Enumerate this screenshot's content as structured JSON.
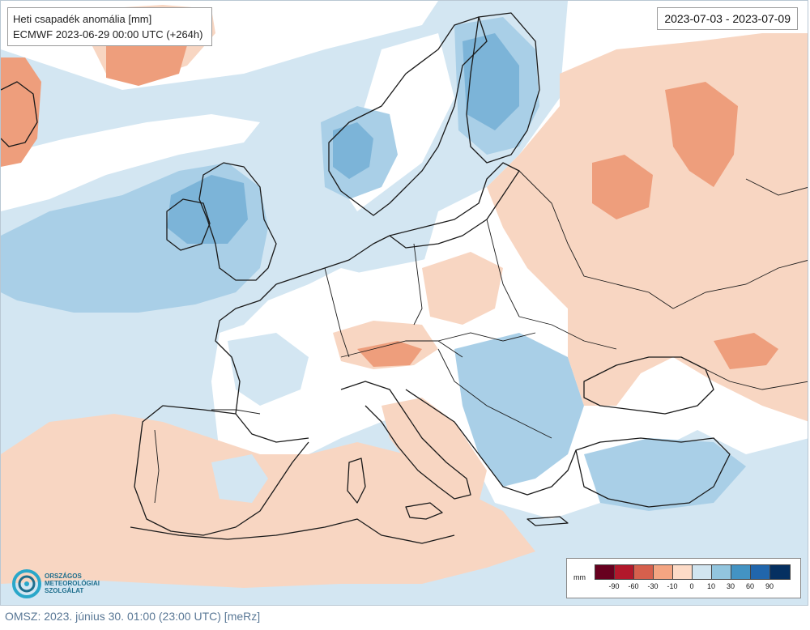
{
  "map": {
    "title": "Heti csapadék anomália [mm]",
    "model_line": "ECMWF 2023-06-29 00:00 UTC (+264h)",
    "period": "2023-07-03 - 2023-07-09",
    "colors": {
      "background": "#ffffff",
      "wet_light": "#d3e6f2",
      "wet_medium": "#a9cfe7",
      "wet_strong": "#7cb4d8",
      "dry_light": "#f8d6c2",
      "dry_medium": "#ee9e7c",
      "dry_strong": "#d9634a",
      "coastline": "#1a1a1a"
    }
  },
  "legend": {
    "unit": "mm",
    "ticks": [
      "-90",
      "-60",
      "-30",
      "-10",
      "0",
      "10",
      "30",
      "60",
      "90"
    ],
    "colors": [
      "#67001f",
      "#b2182b",
      "#d6604d",
      "#f4a582",
      "#fddbc7",
      "#d1e5f0",
      "#92c5de",
      "#4393c3",
      "#2166ac",
      "#053061"
    ]
  },
  "logo": {
    "line1": "ORSZÁGOS",
    "line2": "METEOROLÓGIAI",
    "line3": "SZOLGÁLAT",
    "icon": "omsz-logo-icon"
  },
  "footer": {
    "text": "OMSZ: 2023. június 30. 01:00 (23:00 UTC) [meRz]"
  }
}
